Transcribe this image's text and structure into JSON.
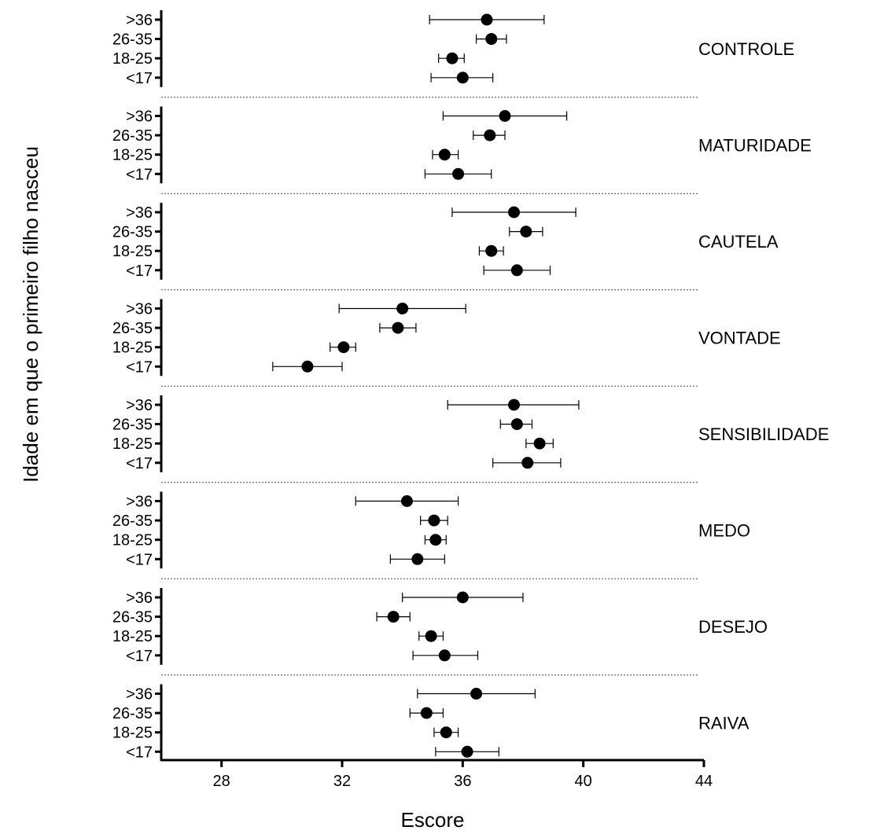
{
  "chart_data": {
    "type": "forest",
    "xlabel": "Escore",
    "ylabel": "Idade em que o primeiro filho nasceu",
    "xlim": [
      26,
      44
    ],
    "xticks": [
      28,
      32,
      36,
      40,
      44
    ],
    "row_labels": [
      ">36",
      "26-35",
      "18-25",
      "<17"
    ],
    "groups": [
      {
        "label": "CONTROLE",
        "points": [
          {
            "row": ">36",
            "mean": 36.8,
            "low": 34.9,
            "high": 38.7
          },
          {
            "row": "26-35",
            "mean": 36.95,
            "low": 36.45,
            "high": 37.45
          },
          {
            "row": "18-25",
            "mean": 35.65,
            "low": 35.2,
            "high": 36.05
          },
          {
            "row": "<17",
            "mean": 36.0,
            "low": 34.95,
            "high": 37.0
          }
        ]
      },
      {
        "label": "MATURIDADE",
        "points": [
          {
            "row": ">36",
            "mean": 37.4,
            "low": 35.35,
            "high": 39.45
          },
          {
            "row": "26-35",
            "mean": 36.9,
            "low": 36.35,
            "high": 37.4
          },
          {
            "row": "18-25",
            "mean": 35.4,
            "low": 35.0,
            "high": 35.85
          },
          {
            "row": "<17",
            "mean": 35.85,
            "low": 34.75,
            "high": 36.95
          }
        ]
      },
      {
        "label": "CAUTELA",
        "points": [
          {
            "row": ">36",
            "mean": 37.7,
            "low": 35.65,
            "high": 39.75
          },
          {
            "row": "26-35",
            "mean": 38.1,
            "low": 37.55,
            "high": 38.65
          },
          {
            "row": "18-25",
            "mean": 36.95,
            "low": 36.55,
            "high": 37.35
          },
          {
            "row": "<17",
            "mean": 37.8,
            "low": 36.7,
            "high": 38.9
          }
        ]
      },
      {
        "label": "VONTADE",
        "points": [
          {
            "row": ">36",
            "mean": 34.0,
            "low": 31.9,
            "high": 36.1
          },
          {
            "row": "26-35",
            "mean": 33.85,
            "low": 33.25,
            "high": 34.45
          },
          {
            "row": "18-25",
            "mean": 32.05,
            "low": 31.6,
            "high": 32.45
          },
          {
            "row": "<17",
            "mean": 30.85,
            "low": 29.7,
            "high": 32.0
          }
        ]
      },
      {
        "label": "SENSIBILIDADE",
        "points": [
          {
            "row": ">36",
            "mean": 37.7,
            "low": 35.5,
            "high": 39.85
          },
          {
            "row": "26-35",
            "mean": 37.8,
            "low": 37.25,
            "high": 38.3
          },
          {
            "row": "18-25",
            "mean": 38.55,
            "low": 38.1,
            "high": 39.0
          },
          {
            "row": "<17",
            "mean": 38.15,
            "low": 37.0,
            "high": 39.25
          }
        ]
      },
      {
        "label": "MEDO",
        "points": [
          {
            "row": ">36",
            "mean": 34.15,
            "low": 32.45,
            "high": 35.85
          },
          {
            "row": "26-35",
            "mean": 35.05,
            "low": 34.6,
            "high": 35.5
          },
          {
            "row": "18-25",
            "mean": 35.1,
            "low": 34.75,
            "high": 35.45
          },
          {
            "row": "<17",
            "mean": 34.5,
            "low": 33.6,
            "high": 35.4
          }
        ]
      },
      {
        "label": "DESEJO",
        "points": [
          {
            "row": ">36",
            "mean": 36.0,
            "low": 34.0,
            "high": 38.0
          },
          {
            "row": "26-35",
            "mean": 33.7,
            "low": 33.15,
            "high": 34.25
          },
          {
            "row": "18-25",
            "mean": 34.95,
            "low": 34.55,
            "high": 35.35
          },
          {
            "row": "<17",
            "mean": 35.4,
            "low": 34.35,
            "high": 36.5
          }
        ]
      },
      {
        "label": "RAIVA",
        "points": [
          {
            "row": ">36",
            "mean": 36.45,
            "low": 34.5,
            "high": 38.4
          },
          {
            "row": "26-35",
            "mean": 34.8,
            "low": 34.25,
            "high": 35.35
          },
          {
            "row": "18-25",
            "mean": 35.45,
            "low": 35.05,
            "high": 35.85
          },
          {
            "row": "<17",
            "mean": 36.15,
            "low": 35.1,
            "high": 37.2
          }
        ]
      }
    ]
  }
}
